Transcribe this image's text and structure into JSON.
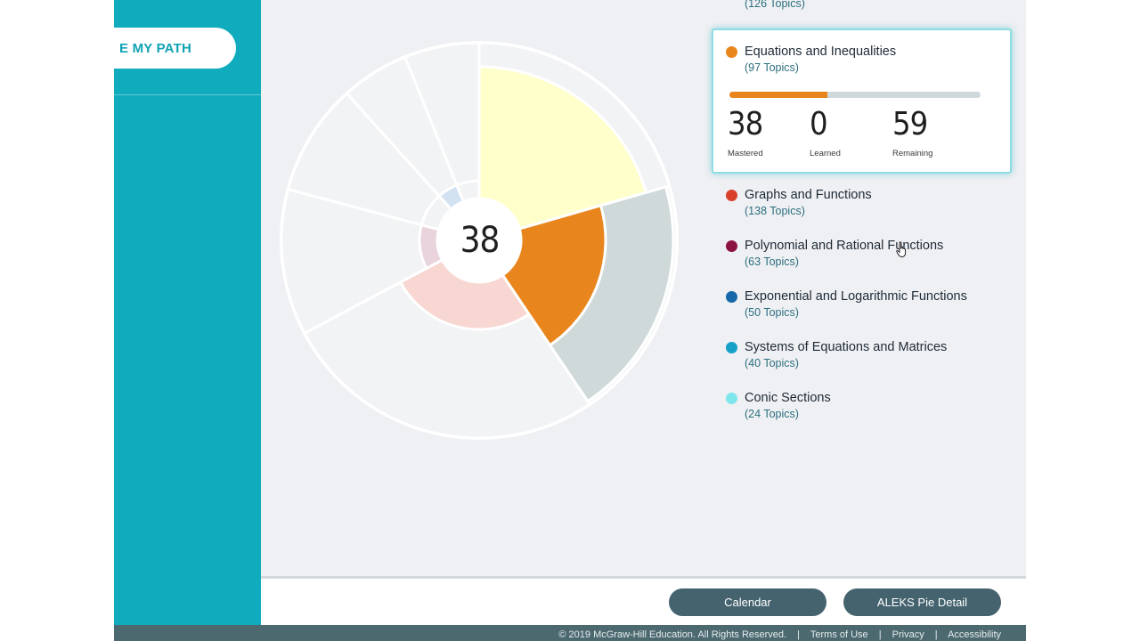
{
  "sidebar": {
    "path_button_label": "E MY PATH"
  },
  "pie": {
    "center_value": "38",
    "colors": {
      "equations_mastered": "#e8861d",
      "equations_remaining": "#cfd9da",
      "prior_topic_mastered": "#ffffcc",
      "graphs_learned": "#f8d6d2",
      "polynomial_learned": "#e9d3dc",
      "exponential_learned": "#d2e2f0",
      "unstarted": "#f2f3f5"
    }
  },
  "legend": {
    "top_partial_count": "(126 Topics)",
    "selected": {
      "name": "Equations and Inequalities",
      "count": "(97 Topics)",
      "color": "#e8861d",
      "progress_fraction": 0.39,
      "mastered_value": "38",
      "mastered_label": "Mastered",
      "learned_value": "0",
      "learned_label": "Learned",
      "remaining_value": "59",
      "remaining_label": "Remaining"
    },
    "items": [
      {
        "name": "Graphs and Functions",
        "count": "(138 Topics)",
        "color": "#d9402b"
      },
      {
        "name": "Polynomial and Rational Functions",
        "count": "(63 Topics)",
        "color": "#8c1242"
      },
      {
        "name": "Exponential and Logarithmic Functions",
        "count": "(50 Topics)",
        "color": "#1769a9"
      },
      {
        "name": "Systems of Equations and Matrices",
        "count": "(40 Topics)",
        "color": "#16a1c9"
      },
      {
        "name": "Conic Sections",
        "count": "(24 Topics)",
        "color": "#7fe6ec"
      }
    ]
  },
  "buttons": {
    "calendar": "Calendar",
    "pie_detail": "ALEKS Pie Detail"
  },
  "footer": {
    "copyright": "© 2019 McGraw-Hill Education. All Rights Reserved.",
    "separator": "|",
    "terms": "Terms of Use",
    "privacy": "Privacy",
    "accessibility": "Accessibility"
  }
}
